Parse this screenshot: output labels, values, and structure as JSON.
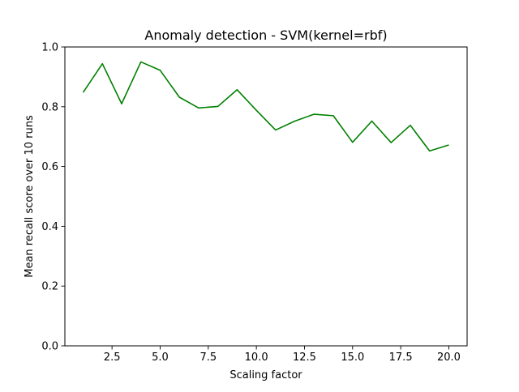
{
  "chart_data": {
    "type": "line",
    "title": "Anomaly detection - SVM(kernel=rbf)",
    "xlabel": "Scaling factor",
    "ylabel": "Mean recall score over 10 runs",
    "xlim": [
      0.05,
      20.95
    ],
    "ylim": [
      0.0,
      1.0
    ],
    "x_ticks": [
      2.5,
      5.0,
      7.5,
      10.0,
      12.5,
      15.0,
      17.5,
      20.0
    ],
    "x_tick_labels": [
      "2.5",
      "5.0",
      "7.5",
      "10.0",
      "12.5",
      "15.0",
      "17.5",
      "20.0"
    ],
    "y_ticks": [
      0.0,
      0.2,
      0.4,
      0.6,
      0.8,
      1.0
    ],
    "y_tick_labels": [
      "0.0",
      "0.2",
      "0.4",
      "0.6",
      "0.8",
      "1.0"
    ],
    "grid": false,
    "series": [
      {
        "color": "#008000",
        "x": [
          1,
          2,
          3,
          4,
          5,
          6,
          7,
          8,
          9,
          10,
          11,
          12,
          13,
          14,
          15,
          16,
          17,
          18,
          19,
          20
        ],
        "values": [
          0.848,
          0.944,
          0.81,
          0.95,
          0.922,
          0.832,
          0.796,
          0.801,
          0.857,
          0.788,
          0.722,
          0.752,
          0.775,
          0.77,
          0.681,
          0.752,
          0.68,
          0.738,
          0.652,
          0.672
        ]
      }
    ]
  }
}
